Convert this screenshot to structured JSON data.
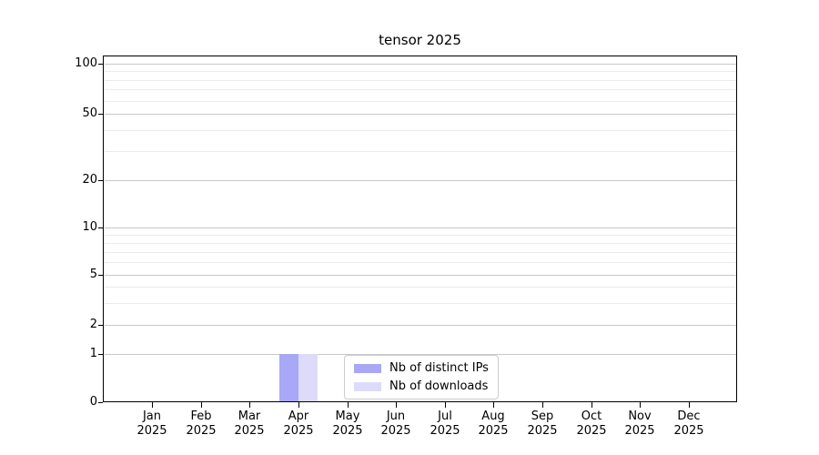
{
  "title": "tensor 2025",
  "chart_data": {
    "type": "bar",
    "title": "tensor 2025",
    "categories": [
      "Jan\n2025",
      "Feb\n2025",
      "Mar\n2025",
      "Apr\n2025",
      "May\n2025",
      "Jun\n2025",
      "Jul\n2025",
      "Aug\n2025",
      "Sep\n2025",
      "Oct\n2025",
      "Nov\n2025",
      "Dec\n2025"
    ],
    "series": [
      {
        "name": "Nb of distinct IPs",
        "color": "#a8a8f6",
        "values": [
          0,
          0,
          0,
          1,
          0,
          0,
          0,
          0,
          0,
          0,
          0,
          0
        ]
      },
      {
        "name": "Nb of downloads",
        "color": "#dcdcfa",
        "values": [
          0,
          0,
          0,
          1,
          0,
          0,
          0,
          0,
          0,
          0,
          0,
          0
        ]
      }
    ],
    "y_axis": {
      "scale": "symlog",
      "tick_values": [
        0,
        1,
        2,
        5,
        10,
        20,
        50,
        100
      ],
      "tick_labels": [
        "0",
        "1",
        "2",
        "5",
        "10",
        "20",
        "50",
        "100"
      ],
      "minor_gridline_values": [
        3,
        4,
        6,
        7,
        8,
        9,
        30,
        40,
        60,
        70,
        80,
        90
      ],
      "range_top": 110
    },
    "x_axis": {
      "year": "2025"
    },
    "grid": "horizontal",
    "legend": {
      "position": "lower center"
    },
    "colors": {
      "background": "#ffffff",
      "spine": "#000000",
      "major_grid": "#c9c9c9",
      "minor_grid": "#ebebeb",
      "legend_border": "#cccccc",
      "bar_distinct_ips": "#a8a8f6",
      "bar_downloads": "#dcdcfa"
    }
  }
}
